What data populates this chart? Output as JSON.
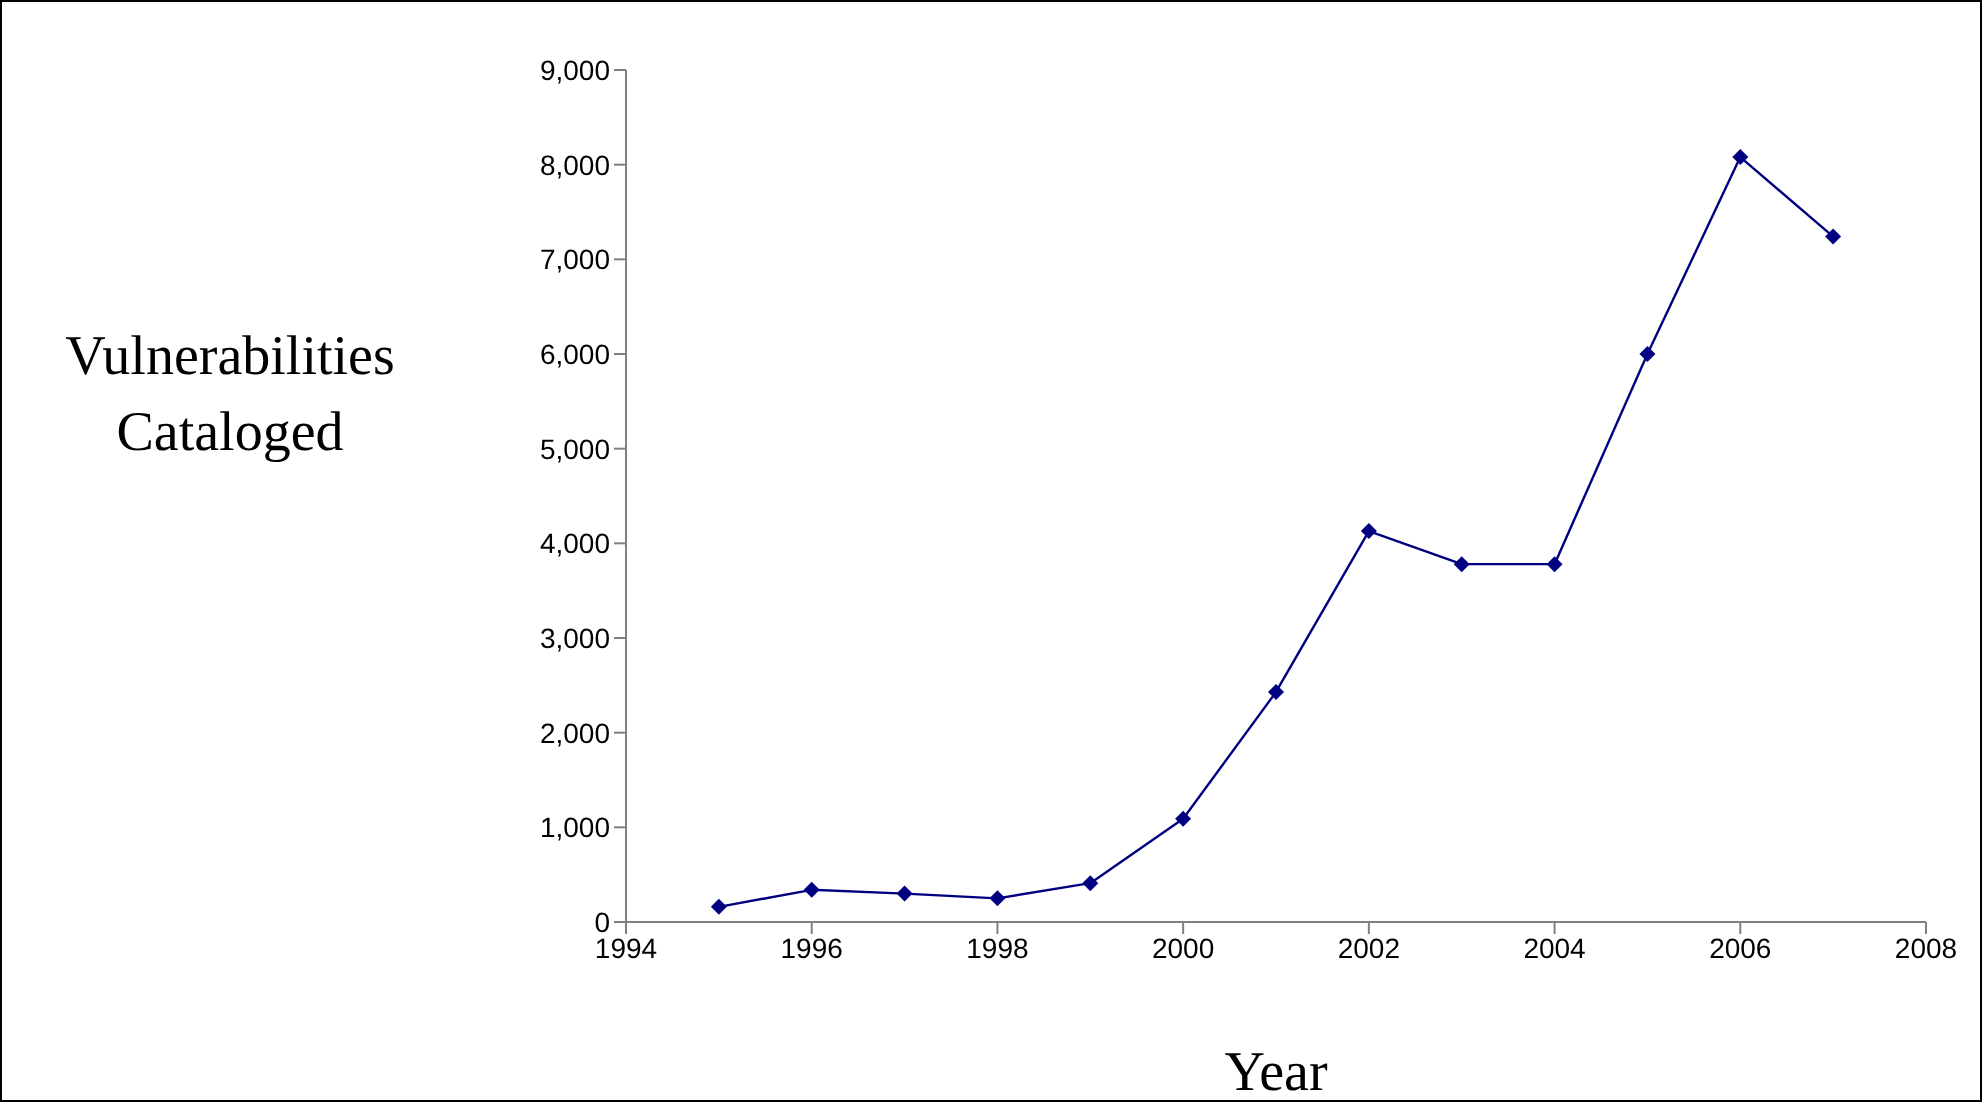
{
  "chart_data": {
    "type": "line",
    "xlabel": "Year",
    "ylabel": "Vulnerabilities Cataloged",
    "x": [
      1995,
      1996,
      1997,
      1998,
      1999,
      2000,
      2001,
      2002,
      2003,
      2004,
      2005,
      2006,
      2007
    ],
    "series": [
      {
        "color": "#000080",
        "values": [
          160,
          340,
          300,
          250,
          410,
          1090,
          2430,
          4130,
          3780,
          3780,
          6000,
          8080,
          7240
        ]
      }
    ],
    "xlim": [
      1994,
      2008
    ],
    "xticks": [
      1994,
      1996,
      1998,
      2000,
      2002,
      2004,
      2006,
      2008
    ],
    "ylim": [
      0,
      9000
    ],
    "yticks": [
      {
        "value": 0,
        "label": "0"
      },
      {
        "value": 1000,
        "label": "1,000"
      },
      {
        "value": 2000,
        "label": "2,000"
      },
      {
        "value": 3000,
        "label": "3,000"
      },
      {
        "value": 4000,
        "label": "4,000"
      },
      {
        "value": 5000,
        "label": "5,000"
      },
      {
        "value": 6000,
        "label": "6,000"
      },
      {
        "value": 7000,
        "label": "7,000"
      },
      {
        "value": 8000,
        "label": "8,000"
      },
      {
        "value": 9000,
        "label": "9,000"
      }
    ],
    "grid": false,
    "marker": "diamond",
    "line_style": "solid"
  }
}
